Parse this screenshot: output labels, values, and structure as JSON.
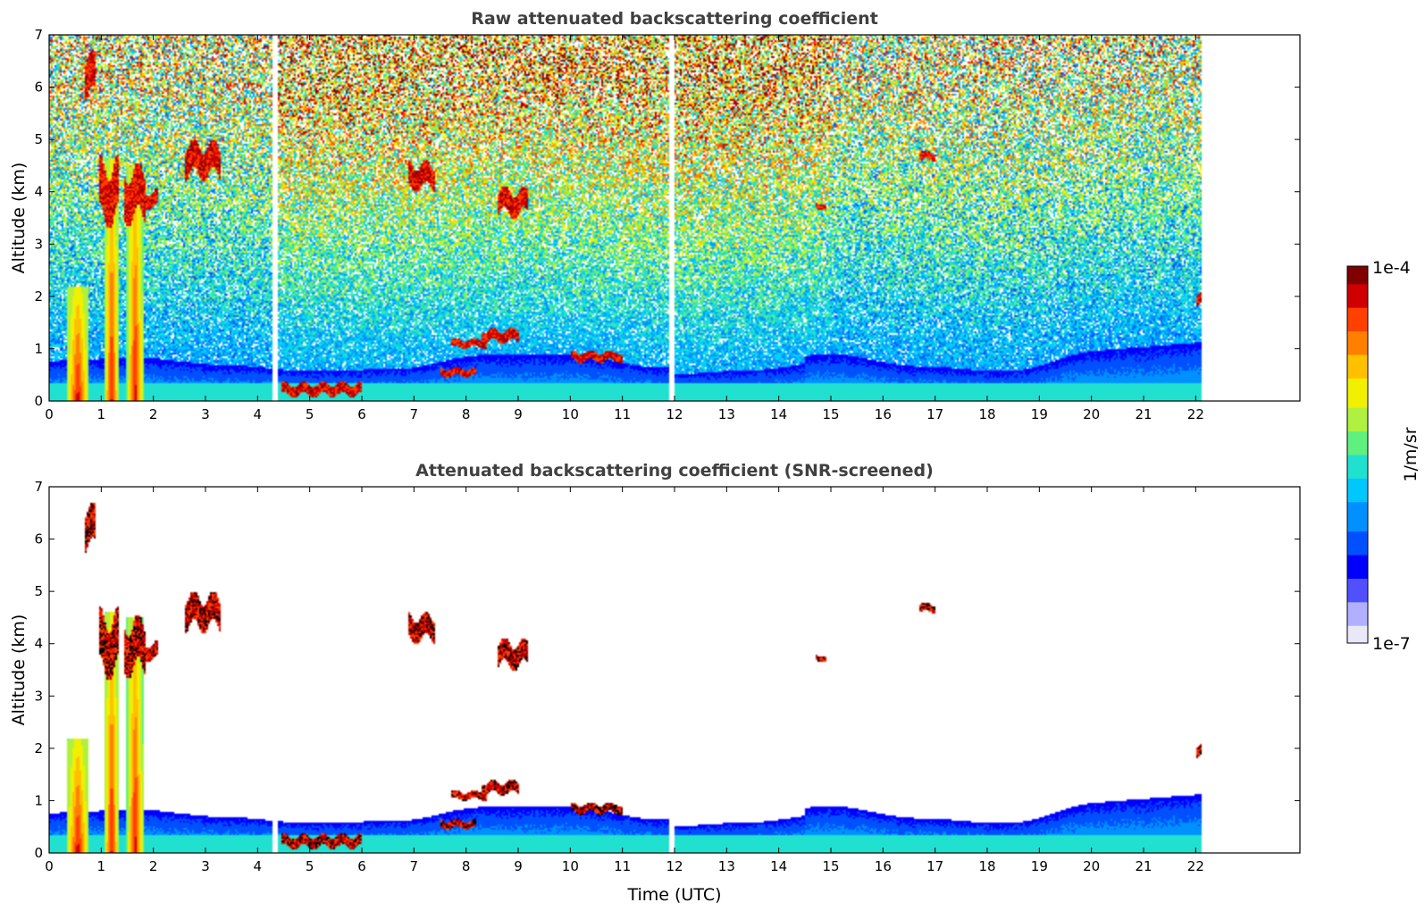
{
  "colors": {
    "scale": [
      "#e8e8f8",
      "#b0b0ff",
      "#5050ff",
      "#0000ff",
      "#0050ff",
      "#0090ff",
      "#00c8ff",
      "#20e0d0",
      "#60f080",
      "#b0f040",
      "#f0f000",
      "#ffc000",
      "#ff8000",
      "#ff4000",
      "#d00000",
      "#800000"
    ],
    "cloud_edge": "#000000",
    "white": "#ffffff"
  },
  "chart_data": [
    {
      "type": "heatmap",
      "title": "Raw attenuated backscattering coefficient",
      "ylabel": "Altitude (km)",
      "xlabel": "",
      "xlim": [
        0,
        24
      ],
      "ylim": [
        0,
        7
      ],
      "xticks": [
        "0",
        "1",
        "2",
        "3",
        "4",
        "5",
        "6",
        "7",
        "8",
        "9",
        "10",
        "11",
        "12",
        "13",
        "14",
        "15",
        "16",
        "17",
        "18",
        "19",
        "20",
        "21",
        "22"
      ],
      "yticks": [
        "0",
        "1",
        "2",
        "3",
        "4",
        "5",
        "6",
        "7"
      ],
      "data_end_time": 22.1,
      "gaps": [
        [
          4.3,
          4.4
        ],
        [
          11.9,
          12.0
        ]
      ],
      "screened": false,
      "features": [
        {
          "kind": "plume",
          "t": 0.55,
          "width": 0.22,
          "top": 2.2
        },
        {
          "kind": "plume",
          "t": 1.2,
          "width": 0.14,
          "top": 4.6
        },
        {
          "kind": "plume",
          "t": 1.65,
          "width": 0.16,
          "top": 4.5
        },
        {
          "kind": "cloud",
          "t0": 0.95,
          "t1": 1.35,
          "z": 4.0,
          "dz": 0.7
        },
        {
          "kind": "cloud",
          "t0": 1.45,
          "t1": 1.85,
          "z": 3.95,
          "dz": 0.6
        },
        {
          "kind": "cloud",
          "t0": 1.8,
          "t1": 2.1,
          "z": 3.85,
          "dz": 0.2
        },
        {
          "kind": "cloud",
          "t0": 0.7,
          "t1": 0.9,
          "z": 6.2,
          "dz": 0.5
        },
        {
          "kind": "cloud",
          "t0": 2.6,
          "t1": 3.3,
          "z": 4.6,
          "dz": 0.4
        },
        {
          "kind": "cloud",
          "t0": 6.9,
          "t1": 7.4,
          "z": 4.3,
          "dz": 0.3
        },
        {
          "kind": "cloud",
          "t0": 8.6,
          "t1": 9.2,
          "z": 3.8,
          "dz": 0.3
        },
        {
          "kind": "cloud",
          "t0": 14.7,
          "t1": 14.9,
          "z": 3.72,
          "dz": 0.08
        },
        {
          "kind": "cloud",
          "t0": 16.7,
          "t1": 17.0,
          "z": 4.68,
          "dz": 0.1
        },
        {
          "kind": "cloud",
          "t0": 22.0,
          "t1": 22.1,
          "z": 1.95,
          "dz": 0.15
        },
        {
          "kind": "cloud",
          "t0": 4.45,
          "t1": 6.0,
          "z": 0.22,
          "dz": 0.15
        },
        {
          "kind": "cloud",
          "t0": 7.7,
          "t1": 8.4,
          "z": 1.1,
          "dz": 0.1
        },
        {
          "kind": "cloud",
          "t0": 8.3,
          "t1": 9.0,
          "z": 1.25,
          "dz": 0.15
        },
        {
          "kind": "cloud",
          "t0": 10.0,
          "t1": 11.0,
          "z": 0.85,
          "dz": 0.12
        },
        {
          "kind": "cloud",
          "t0": 7.5,
          "t1": 8.2,
          "z": 0.55,
          "dz": 0.1
        }
      ]
    },
    {
      "type": "heatmap",
      "title": "Attenuated backscattering coefficient (SNR-screened)",
      "ylabel": "Altitude (km)",
      "xlabel": "Time (UTC)",
      "xlim": [
        0,
        24
      ],
      "ylim": [
        0,
        7
      ],
      "xticks": [
        "0",
        "1",
        "2",
        "3",
        "4",
        "5",
        "6",
        "7",
        "8",
        "9",
        "10",
        "11",
        "12",
        "13",
        "14",
        "15",
        "16",
        "17",
        "18",
        "19",
        "20",
        "21",
        "22"
      ],
      "yticks": [
        "0",
        "1",
        "2",
        "3",
        "4",
        "5",
        "6",
        "7"
      ],
      "data_end_time": 22.1,
      "gaps": [
        [
          4.3,
          4.4
        ],
        [
          11.9,
          12.0
        ]
      ],
      "screened": true,
      "features": [
        {
          "kind": "plume",
          "t": 0.55,
          "width": 0.22,
          "top": 2.2
        },
        {
          "kind": "plume",
          "t": 1.2,
          "width": 0.14,
          "top": 4.6
        },
        {
          "kind": "plume",
          "t": 1.65,
          "width": 0.16,
          "top": 4.5
        },
        {
          "kind": "cloud",
          "t0": 0.95,
          "t1": 1.35,
          "z": 4.0,
          "dz": 0.7
        },
        {
          "kind": "cloud",
          "t0": 1.45,
          "t1": 1.85,
          "z": 3.95,
          "dz": 0.6
        },
        {
          "kind": "cloud",
          "t0": 1.8,
          "t1": 2.1,
          "z": 3.85,
          "dz": 0.2
        },
        {
          "kind": "cloud",
          "t0": 0.7,
          "t1": 0.9,
          "z": 6.2,
          "dz": 0.5
        },
        {
          "kind": "cloud",
          "t0": 2.6,
          "t1": 3.3,
          "z": 4.6,
          "dz": 0.4
        },
        {
          "kind": "cloud",
          "t0": 6.9,
          "t1": 7.4,
          "z": 4.3,
          "dz": 0.3
        },
        {
          "kind": "cloud",
          "t0": 8.6,
          "t1": 9.2,
          "z": 3.8,
          "dz": 0.3
        },
        {
          "kind": "cloud",
          "t0": 14.7,
          "t1": 14.9,
          "z": 3.72,
          "dz": 0.08
        },
        {
          "kind": "cloud",
          "t0": 16.7,
          "t1": 17.0,
          "z": 4.68,
          "dz": 0.1
        },
        {
          "kind": "cloud",
          "t0": 22.0,
          "t1": 22.1,
          "z": 1.95,
          "dz": 0.15
        },
        {
          "kind": "cloud",
          "t0": 4.45,
          "t1": 6.0,
          "z": 0.22,
          "dz": 0.15
        },
        {
          "kind": "cloud",
          "t0": 7.7,
          "t1": 8.4,
          "z": 1.1,
          "dz": 0.1
        },
        {
          "kind": "cloud",
          "t0": 8.3,
          "t1": 9.0,
          "z": 1.25,
          "dz": 0.15
        },
        {
          "kind": "cloud",
          "t0": 10.0,
          "t1": 11.0,
          "z": 0.85,
          "dz": 0.12
        },
        {
          "kind": "cloud",
          "t0": 7.5,
          "t1": 8.2,
          "z": 0.55,
          "dz": 0.1
        }
      ]
    }
  ],
  "colorbar": {
    "max_label": "1e-4",
    "min_label": "1e-7",
    "unit_label": "1/m/sr",
    "range": [
      1e-07,
      0.0001
    ],
    "scale": "log"
  }
}
